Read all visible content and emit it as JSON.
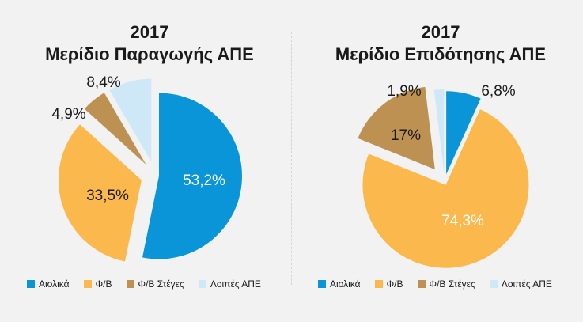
{
  "colors": {
    "aiolika": "#0a95d8",
    "fb": "#fbb84d",
    "fb_steges": "#bd9152",
    "loipes": "#cfe8f7"
  },
  "chart_data": [
    {
      "type": "pie",
      "title": "2017",
      "subtitle": "Μερίδιο Παραγωγής ΑΠΕ",
      "categories": [
        "Αιολικά",
        "Φ/Β",
        "Φ/Β Στέγες",
        "Λοιπές ΑΠΕ"
      ],
      "values": [
        53.2,
        33.5,
        4.9,
        8.4
      ],
      "labels": [
        "53,2%",
        "33,5%",
        "4,9%",
        "8,4%"
      ],
      "legend": "bottom"
    },
    {
      "type": "pie",
      "title": "2017",
      "subtitle": "Μερίδιο Επιδότησης  ΑΠΕ",
      "categories": [
        "Αιολικά",
        "Φ/Β",
        "Φ/Β Στέγες",
        "Λοιπές ΑΠΕ"
      ],
      "values": [
        6.8,
        74.3,
        17,
        1.9
      ],
      "labels": [
        "6,8%",
        "74,3%",
        "17%",
        "1,9%"
      ],
      "legend": "bottom"
    }
  ]
}
